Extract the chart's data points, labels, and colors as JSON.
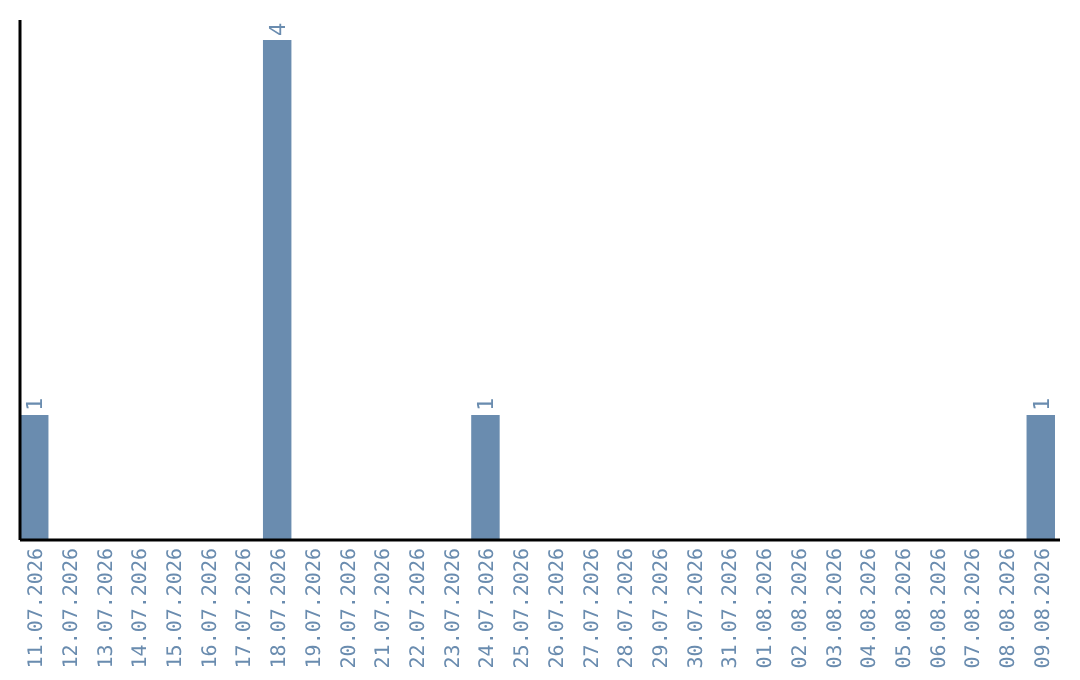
{
  "chart_data": {
    "type": "bar",
    "categories": [
      "11.07.2026",
      "12.07.2026",
      "13.07.2026",
      "14.07.2026",
      "15.07.2026",
      "16.07.2026",
      "17.07.2026",
      "18.07.2026",
      "19.07.2026",
      "20.07.2026",
      "21.07.2026",
      "22.07.2026",
      "23.07.2026",
      "24.07.2026",
      "25.07.2026",
      "26.07.2026",
      "27.07.2026",
      "28.07.2026",
      "29.07.2026",
      "30.07.2026",
      "31.07.2026",
      "01.08.2026",
      "02.08.2026",
      "03.08.2026",
      "04.08.2026",
      "05.08.2026",
      "06.08.2026",
      "07.08.2026",
      "08.08.2026",
      "09.08.2026"
    ],
    "values": [
      1,
      0,
      0,
      0,
      0,
      0,
      0,
      4,
      0,
      0,
      0,
      0,
      0,
      1,
      0,
      0,
      0,
      0,
      0,
      0,
      0,
      0,
      0,
      0,
      0,
      0,
      0,
      0,
      0,
      1
    ],
    "value_labels": [
      "1",
      null,
      null,
      null,
      null,
      null,
      null,
      "4",
      null,
      null,
      null,
      null,
      null,
      "1",
      null,
      null,
      null,
      null,
      null,
      null,
      null,
      null,
      null,
      null,
      null,
      null,
      null,
      null,
      null,
      "1"
    ],
    "color": "#6a8caf"
  }
}
